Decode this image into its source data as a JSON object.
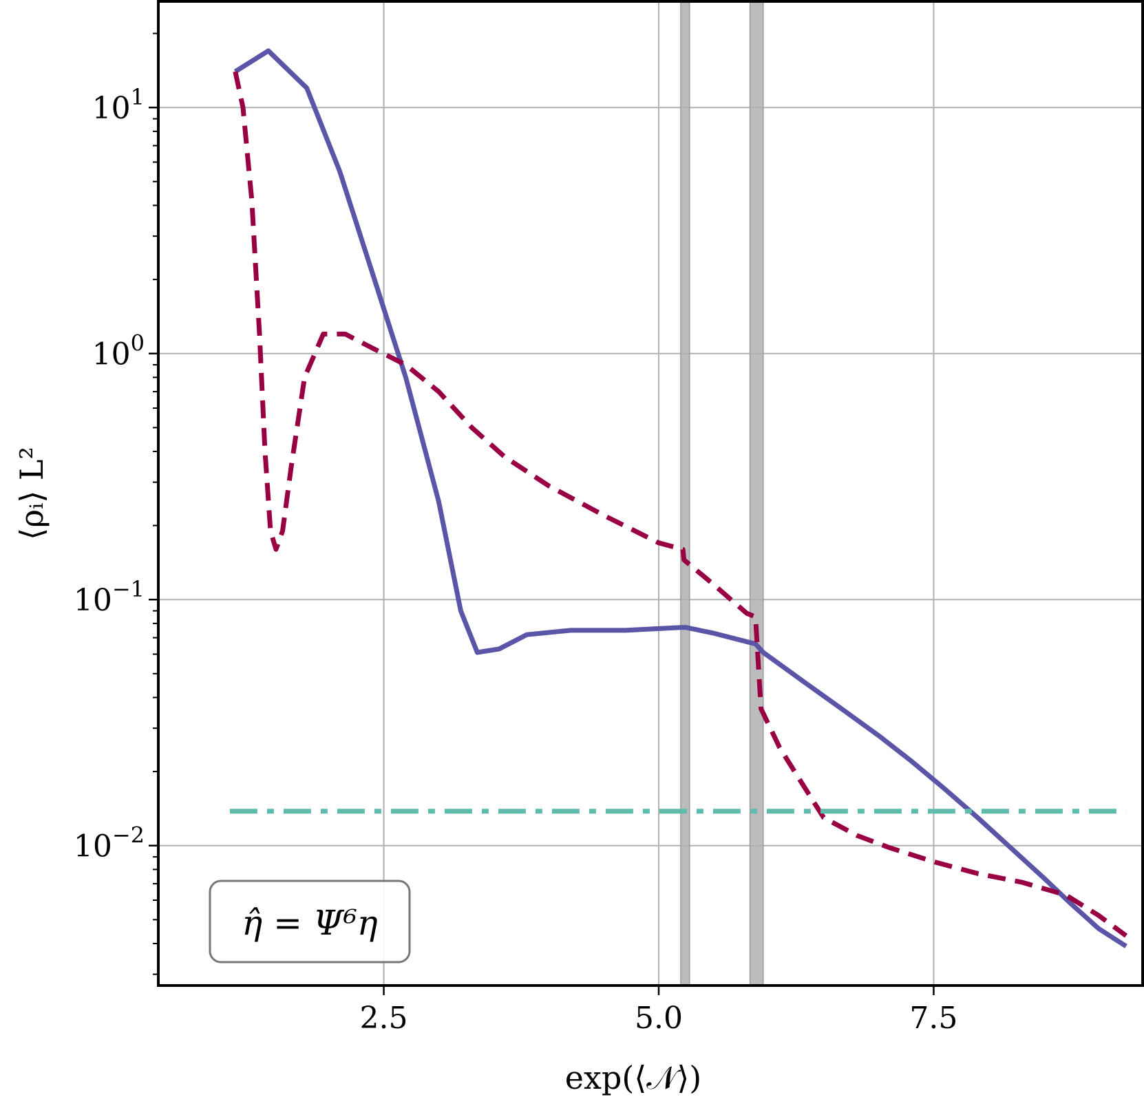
{
  "chart_data": {
    "type": "line",
    "title": "",
    "xlabel": "exp(⟨𝒩⟩)",
    "ylabel": "⟨ρᵢ⟩ L²",
    "yscale": "log",
    "xlim": [
      0.45,
      9.4
    ],
    "ylim": [
      0.0027,
      27
    ],
    "grid": true,
    "legend": "none",
    "x_ticks": [
      {
        "value": 2.5,
        "label": "2.5"
      },
      {
        "value": 5.0,
        "label": "5.0"
      },
      {
        "value": 7.5,
        "label": "7.5"
      }
    ],
    "y_ticks": [
      {
        "value": 10,
        "base": "10",
        "exp": "1"
      },
      {
        "value": 1,
        "base": "10",
        "exp": "0"
      },
      {
        "value": 0.1,
        "base": "10",
        "exp": "−1"
      },
      {
        "value": 0.01,
        "base": "10",
        "exp": "−2"
      }
    ],
    "vertical_bands": [
      {
        "from": 5.2,
        "to": 5.28,
        "color": "#b0b0b0"
      },
      {
        "from": 5.83,
        "to": 5.95,
        "color": "#b0b0b0"
      }
    ],
    "series": [
      {
        "style": "solid",
        "color": "#5a55a6",
        "x": [
          1.15,
          1.45,
          1.8,
          2.1,
          2.4,
          2.7,
          3.0,
          3.2,
          3.35,
          3.55,
          3.8,
          4.2,
          4.7,
          5.2,
          5.25,
          5.5,
          5.88,
          5.95,
          6.3,
          6.7,
          7.0,
          7.3,
          7.6,
          7.9,
          8.2,
          8.5,
          8.75,
          9.0,
          9.25
        ],
        "y": [
          14,
          17,
          12,
          5.5,
          2.1,
          0.8,
          0.25,
          0.09,
          0.061,
          0.063,
          0.072,
          0.075,
          0.075,
          0.077,
          0.077,
          0.073,
          0.066,
          0.061,
          0.047,
          0.035,
          0.028,
          0.022,
          0.017,
          0.013,
          0.0098,
          0.0074,
          0.0058,
          0.0046,
          0.0039
        ]
      },
      {
        "style": "dashed",
        "color": "#990044",
        "x": [
          1.15,
          1.22,
          1.3,
          1.37,
          1.42,
          1.47,
          1.52,
          1.58,
          1.66,
          1.78,
          1.95,
          2.15,
          2.4,
          2.7,
          3.0,
          3.3,
          3.6,
          4.0,
          4.5,
          5.0,
          5.22,
          5.23,
          5.5,
          5.8,
          5.88,
          5.93,
          6.1,
          6.3,
          6.5,
          6.8,
          7.1,
          7.5,
          7.9,
          8.3,
          8.7,
          9.0,
          9.25
        ],
        "y": [
          14,
          10,
          4.2,
          1.2,
          0.4,
          0.19,
          0.16,
          0.19,
          0.35,
          0.8,
          1.2,
          1.2,
          1.05,
          0.9,
          0.7,
          0.5,
          0.38,
          0.29,
          0.22,
          0.17,
          0.16,
          0.145,
          0.115,
          0.088,
          0.085,
          0.036,
          0.025,
          0.018,
          0.013,
          0.011,
          0.0098,
          0.0086,
          0.0077,
          0.0071,
          0.0063,
          0.0052,
          0.0043
        ]
      },
      {
        "style": "dashdot",
        "color": "#5fbcad",
        "x": [
          1.1,
          9.25
        ],
        "y": [
          0.0138,
          0.0138
        ]
      }
    ],
    "annotation": "η̂ = Ψ⁶η"
  }
}
